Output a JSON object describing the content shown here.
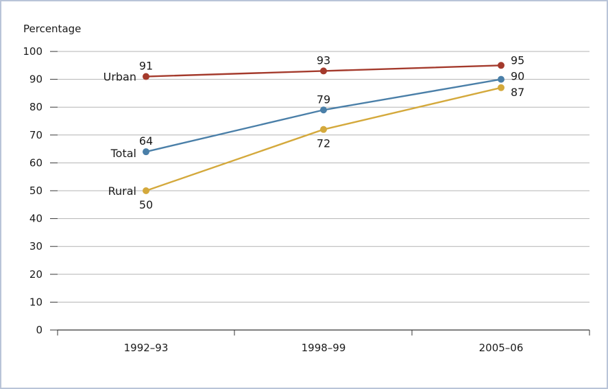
{
  "chart_data": {
    "type": "line",
    "title": "",
    "ylabel": "Percentage",
    "xlabel": "",
    "categories": [
      "1992–93",
      "1998–99",
      "2005–06"
    ],
    "ylim": [
      0,
      100
    ],
    "yticks": [
      0,
      10,
      20,
      30,
      40,
      50,
      60,
      70,
      80,
      90,
      100
    ],
    "grid": true,
    "legend": "none (series labelled inline at left)",
    "series": [
      {
        "name": "Urban",
        "values": [
          91,
          93,
          95
        ],
        "color": "#a43a2c"
      },
      {
        "name": "Total",
        "values": [
          64,
          79,
          90
        ],
        "color": "#4a7fa8"
      },
      {
        "name": "Rural",
        "values": [
          50,
          72,
          87
        ],
        "color": "#d4a93c"
      }
    ],
    "data_labels": [
      {
        "series": "Urban",
        "labels": [
          "91",
          "93",
          "95"
        ]
      },
      {
        "series": "Total",
        "labels": [
          "64",
          "79",
          "90"
        ]
      },
      {
        "series": "Rural",
        "labels": [
          "50",
          "72",
          "87"
        ]
      }
    ]
  }
}
